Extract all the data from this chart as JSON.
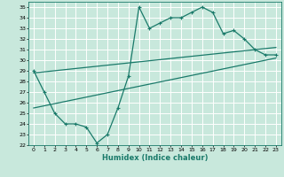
{
  "bg_color": "#c8e8dc",
  "grid_color": "#ffffff",
  "line_color": "#1a7a6a",
  "xlabel": "Humidex (Indice chaleur)",
  "xlim": [
    -0.5,
    23.5
  ],
  "ylim": [
    22,
    35.5
  ],
  "yticks": [
    22,
    23,
    24,
    25,
    26,
    27,
    28,
    29,
    30,
    31,
    32,
    33,
    34,
    35
  ],
  "xticks": [
    0,
    1,
    2,
    3,
    4,
    5,
    6,
    7,
    8,
    9,
    10,
    11,
    12,
    13,
    14,
    15,
    16,
    17,
    18,
    19,
    20,
    21,
    22,
    23
  ],
  "line1_x": [
    0,
    1,
    2,
    3,
    4,
    5,
    6,
    7,
    8,
    9,
    10,
    11,
    12,
    13,
    14,
    15,
    16,
    17,
    18,
    19,
    20,
    21,
    22,
    23
  ],
  "line1_y": [
    29.0,
    27.0,
    25.0,
    24.0,
    24.0,
    23.7,
    22.2,
    23.0,
    25.5,
    28.5,
    35.0,
    33.0,
    33.5,
    34.0,
    34.0,
    34.5,
    35.0,
    34.5,
    32.5,
    32.8,
    32.0,
    31.0,
    30.5,
    30.5
  ],
  "line2_x": [
    0,
    23
  ],
  "line2_y": [
    28.8,
    31.2
  ],
  "line3_x": [
    0,
    23
  ],
  "line3_y": [
    25.5,
    30.2
  ]
}
